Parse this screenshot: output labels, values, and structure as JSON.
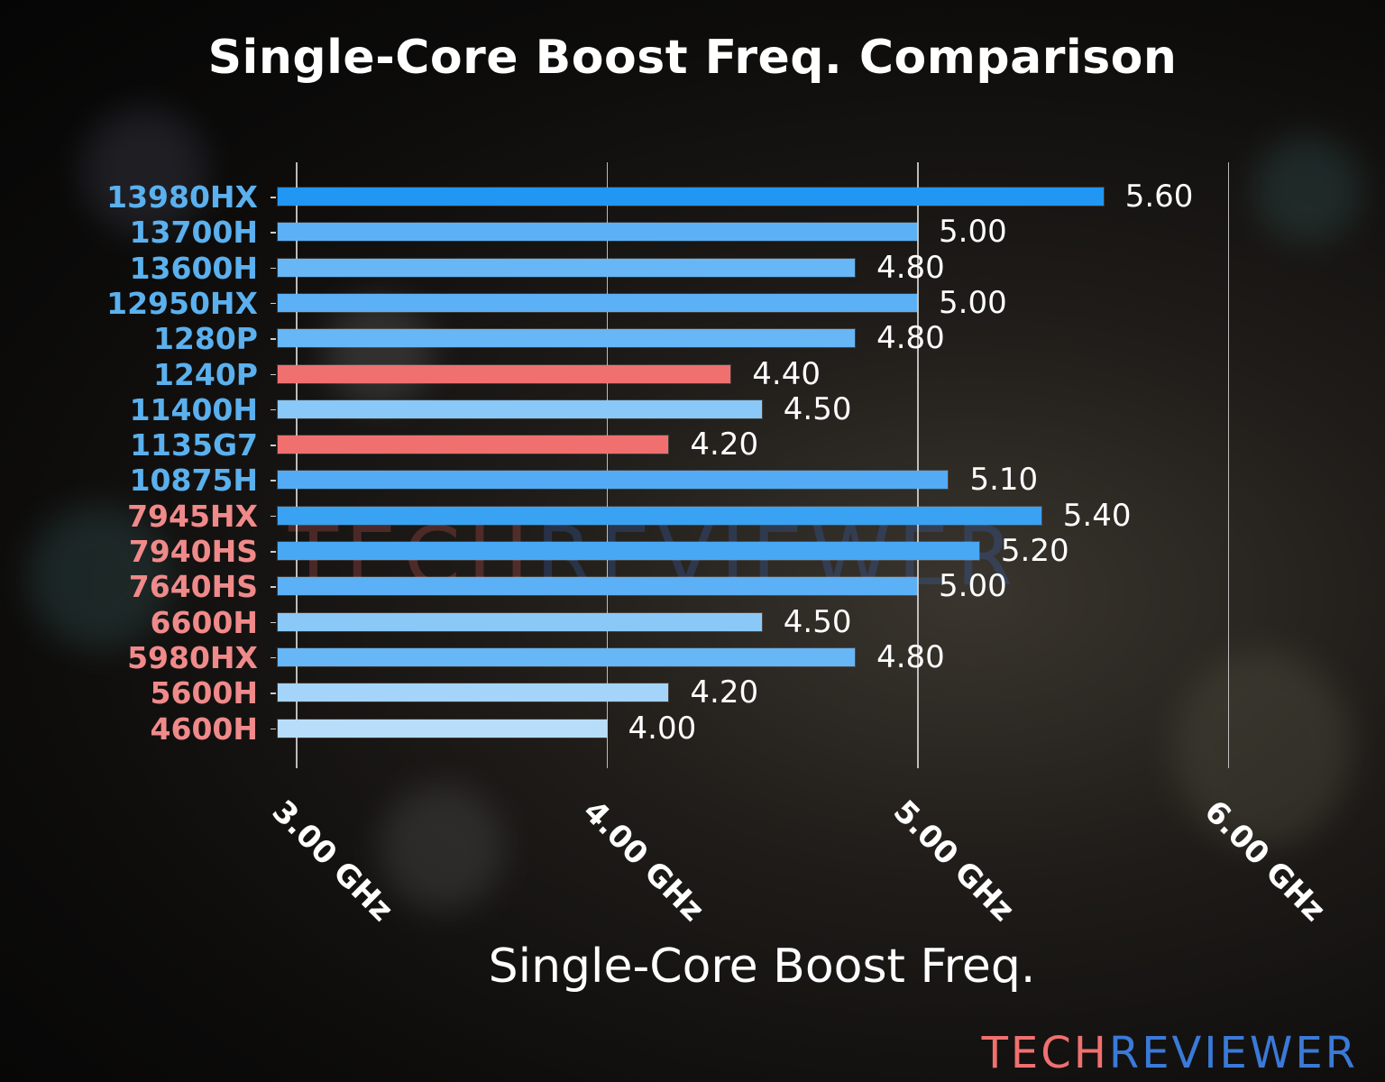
{
  "title": "Single-Core Boost Freq. Comparison",
  "brand": {
    "part1": "TECH",
    "part2": "REVIEWER"
  },
  "watermark": {
    "part1": "TECH",
    "part2": "REVIEWER"
  },
  "chart_data": {
    "type": "bar",
    "orientation": "horizontal",
    "title": "Single-Core Boost Freq. Comparison",
    "xlabel": "Single-Core Boost Freq.",
    "ylabel": "",
    "xlim": [
      2.94,
      6.0
    ],
    "xticks": [
      3.0,
      4.0,
      5.0,
      6.0
    ],
    "xtick_labels": [
      "3.00 GHz",
      "4.00 GHz",
      "5.00 GHz",
      "6.00 GHz"
    ],
    "grid": "vertical",
    "legend": null,
    "categories": [
      "13980HX",
      "13700H",
      "13600H",
      "12950HX",
      "1280P",
      "1240P",
      "11400H",
      "1135G7",
      "10875H",
      "7945HX",
      "7940HS",
      "7640HS",
      "6600H",
      "5980HX",
      "5600H",
      "4600H"
    ],
    "values": [
      5.6,
      5.0,
      4.8,
      5.0,
      4.8,
      4.4,
      4.5,
      4.2,
      5.1,
      5.4,
      5.2,
      5.0,
      4.5,
      4.8,
      4.2,
      4.0
    ],
    "value_labels": [
      "5.60",
      "5.00",
      "4.80",
      "5.00",
      "4.80",
      "4.40",
      "4.50",
      "4.20",
      "5.10",
      "5.40",
      "5.20",
      "5.00",
      "4.50",
      "4.80",
      "4.20",
      "4.00"
    ],
    "label_colors": [
      "#5bb0ee",
      "#5bb0ee",
      "#5bb0ee",
      "#5bb0ee",
      "#5bb0ee",
      "#5bb0ee",
      "#5bb0ee",
      "#5bb0ee",
      "#5bb0ee",
      "#f08a8a",
      "#f08a8a",
      "#f08a8a",
      "#f08a8a",
      "#f08a8a",
      "#f08a8a",
      "#f08a8a"
    ],
    "bar_colors": [
      "#2196f3",
      "#5cb0f5",
      "#67b6f6",
      "#5cb0f5",
      "#67b6f6",
      "#f07070",
      "#8ac8f8",
      "#f07070",
      "#52abf4",
      "#3aa2f3",
      "#48a8f4",
      "#5cb0f5",
      "#8ac8f8",
      "#67b6f6",
      "#a4d4f9",
      "#b8ddfb"
    ]
  }
}
